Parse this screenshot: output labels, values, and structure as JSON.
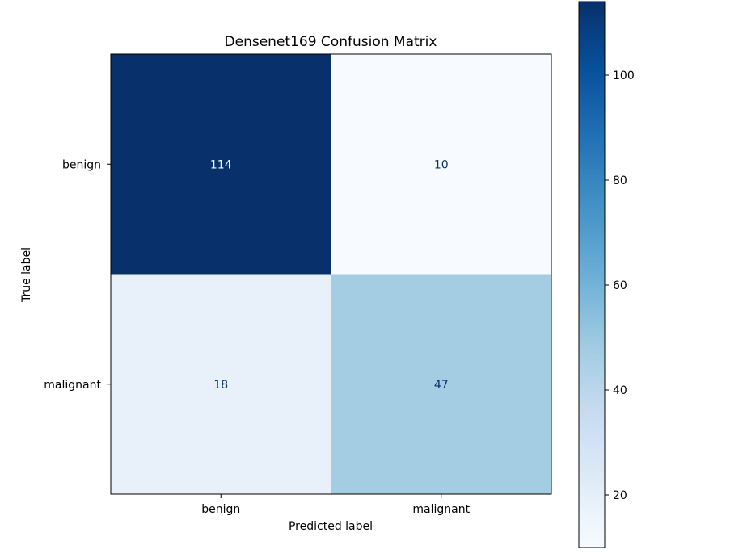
{
  "chart_data": {
    "type": "heatmap",
    "title": "Densenet169 Confusion Matrix",
    "xlabel": "Predicted label",
    "ylabel": "True label",
    "x_categories": [
      "benign",
      "malignant"
    ],
    "y_categories": [
      "benign",
      "malignant"
    ],
    "values": [
      [
        114,
        10
      ],
      [
        18,
        47
      ]
    ],
    "colormap": "Blues",
    "colorbar": {
      "range": [
        10,
        114
      ],
      "ticks": [
        20,
        40,
        60,
        80,
        100
      ],
      "tick_labels": [
        "20",
        "40",
        "60",
        "80",
        "100"
      ]
    },
    "colors": {
      "low": "#f7fbff",
      "high": "#08306b",
      "text_on_dark": "#f7fbff",
      "text_on_light": "#08306b"
    },
    "grid": false,
    "legend": "none"
  }
}
